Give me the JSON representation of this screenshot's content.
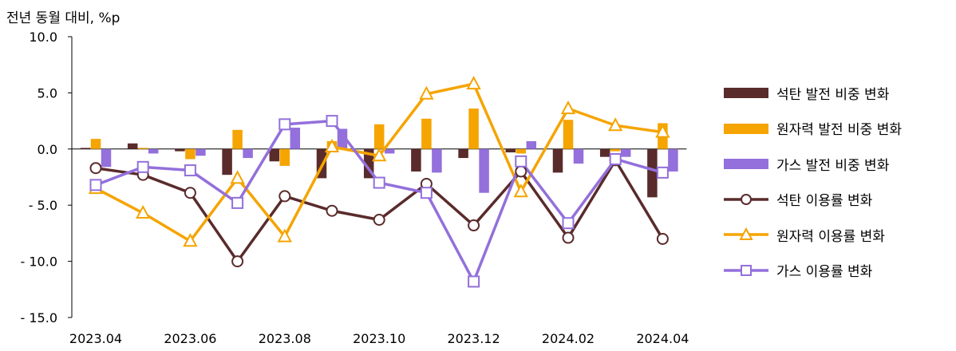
{
  "chart_data": {
    "type": "bar+line",
    "ylabel": "전년 동월 대비, %p",
    "ylim": [
      -15,
      10
    ],
    "yticks": [
      "10.0",
      "5.0",
      "0.0",
      "- 5.0",
      "- 10.0",
      "- 15.0"
    ],
    "ytick_values": [
      10,
      5,
      0,
      -5,
      -10,
      -15
    ],
    "categories": [
      "2023.04",
      "2023.05",
      "2023.06",
      "2023.07",
      "2023.08",
      "2023.09",
      "2023.10",
      "2023.11",
      "2023.12",
      "2024.01",
      "2024.02",
      "2024.03",
      "2024.04"
    ],
    "xtick_labels": [
      "2023.04",
      "2023.06",
      "2023.08",
      "2023.10",
      "2023.12",
      "2024.02",
      "2024.04"
    ],
    "grid": false,
    "legend_position": "right",
    "bar_series": [
      {
        "name": "석탄 발전 비중 변화",
        "color": "#5a2b2b",
        "values": [
          0.1,
          0.5,
          -0.2,
          -2.3,
          -1.1,
          -2.6,
          -2.6,
          -2.0,
          -0.8,
          -0.3,
          -2.1,
          -0.7,
          -4.3
        ]
      },
      {
        "name": "원자력 발전 비중 변화",
        "color": "#f5a400",
        "values": [
          0.9,
          0.1,
          -0.9,
          1.7,
          -1.5,
          0.7,
          2.2,
          2.7,
          3.6,
          -0.4,
          2.6,
          -0.2,
          2.3
        ]
      },
      {
        "name": "가스 발전 비중 변화",
        "color": "#9370db",
        "values": [
          -1.6,
          -0.4,
          -0.6,
          -0.8,
          1.9,
          1.8,
          -0.4,
          -2.1,
          -3.9,
          0.7,
          -1.3,
          -0.7,
          -2.0
        ]
      }
    ],
    "line_series": [
      {
        "name": "석탄 이용률 변화",
        "color": "#5a2b2b",
        "marker": "circle",
        "values": [
          -1.7,
          -2.3,
          -3.9,
          -10.0,
          -4.2,
          -5.5,
          -6.3,
          -3.1,
          -6.8,
          -2.0,
          -7.9,
          -1.0,
          -8.0
        ]
      },
      {
        "name": "원자력 이용률 변화",
        "color": "#f5a400",
        "marker": "triangle",
        "values": [
          -3.5,
          -5.7,
          -8.2,
          -2.6,
          -7.8,
          0.2,
          -0.6,
          4.9,
          5.8,
          -3.8,
          3.6,
          2.1,
          1.5
        ]
      },
      {
        "name": "가스 이용률 변화",
        "color": "#9370db",
        "marker": "square",
        "values": [
          -3.2,
          -1.6,
          -1.9,
          -4.8,
          2.2,
          2.5,
          -3.0,
          -3.9,
          -11.8,
          -1.1,
          -6.6,
          -0.9,
          -2.1
        ]
      }
    ]
  }
}
